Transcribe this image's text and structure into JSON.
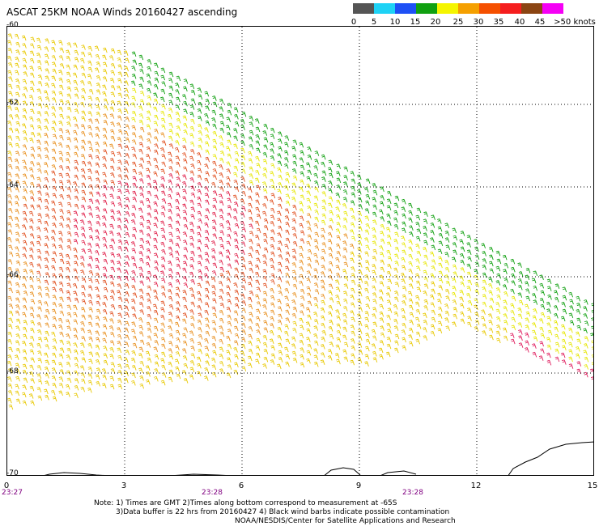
{
  "title": "ASCAT 25KM NOAA Winds 20160427 ascending",
  "legend": {
    "labels": [
      "0",
      "5",
      "10",
      "15",
      "20",
      "25",
      "30",
      "35",
      "40",
      "45",
      ">50 knots"
    ],
    "colors": [
      "#555555",
      "#1ed2f5",
      "#1e50f5",
      "#10a010",
      "#f5f500",
      "#f5a000",
      "#f55000",
      "#f51e1e",
      "#8b4513",
      "#f500f5",
      "#7a00aa"
    ]
  },
  "latitudes": [
    "-60",
    "-62",
    "-64",
    "-66",
    "-68",
    "-70"
  ],
  "longitudes": [
    "0",
    "3",
    "6",
    "9",
    "12",
    "15"
  ],
  "times": [
    "23:27",
    "23:28",
    "23:28"
  ],
  "notes": {
    "line1": "Note: 1) Times are GMT 2)Times along bottom correspond to measurement at -65S",
    "line2": "3)Data buffer is 22 hrs from 20160427 4) Black wind barbs indicate possible contamination",
    "line3": "NOAA/NESDIS/Center for Satellite Applications and Research"
  },
  "colors": {
    "coast": "#000000",
    "grid": "#000000"
  }
}
